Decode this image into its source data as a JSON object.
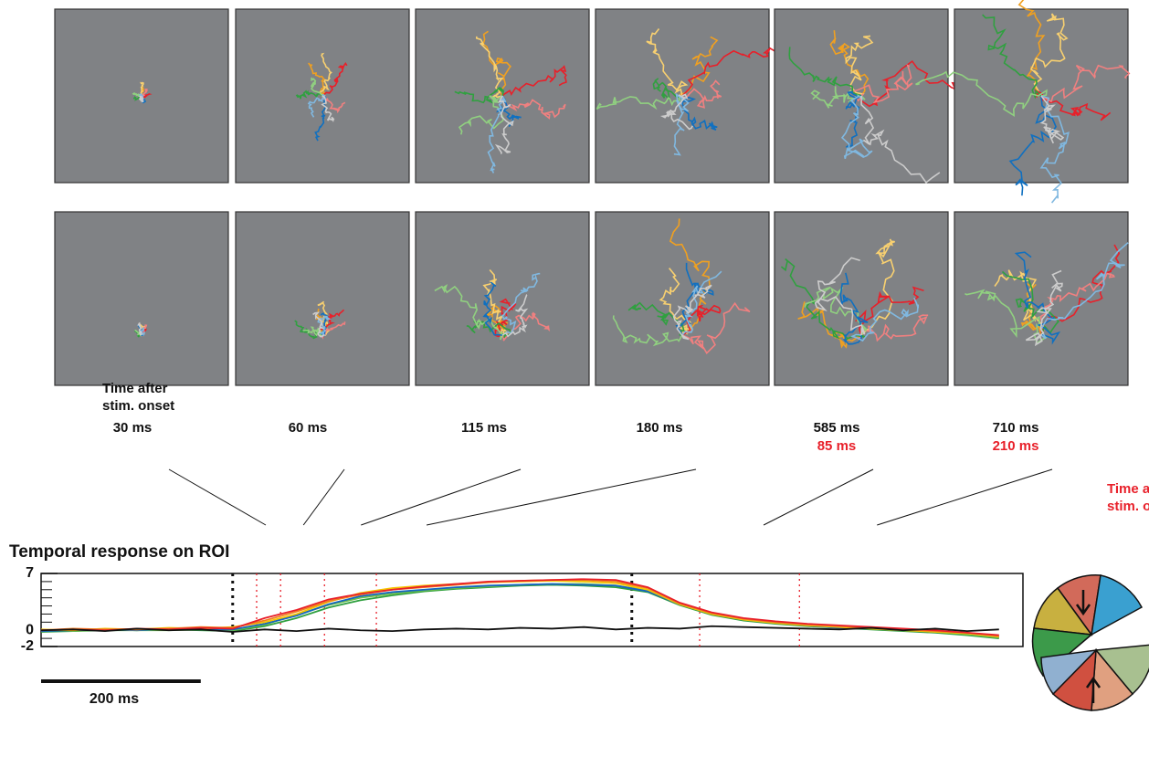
{
  "figure": {
    "onset_caption": [
      "Time after",
      "stim. onset"
    ],
    "offset_caption": [
      "Time after",
      "stim. offset"
    ],
    "times": [
      "30 ms",
      "60 ms",
      "115 ms",
      "180 ms",
      "585 ms",
      "710 ms"
    ],
    "offset_times": [
      "85 ms",
      "210 ms"
    ]
  },
  "chart_data": {
    "type": "line",
    "title": "Temporal response on ROI",
    "x": [
      -240,
      -200,
      -160,
      -120,
      -80,
      -40,
      0,
      40,
      80,
      120,
      160,
      200,
      240,
      280,
      320,
      360,
      400,
      440,
      480,
      520,
      560,
      600,
      640,
      680,
      720,
      760,
      800,
      840,
      880,
      920,
      960
    ],
    "series": [
      {
        "color": "#30a040",
        "values": [
          -0.2,
          -0.1,
          0,
          0,
          0.1,
          0,
          -0.1,
          0.5,
          1.5,
          2.8,
          3.7,
          4.3,
          4.8,
          5.1,
          5.3,
          5.5,
          5.6,
          5.5,
          5.3,
          4.7,
          3.1,
          1.9,
          1.2,
          0.8,
          0.5,
          0.3,
          0.1,
          -0.1,
          -0.3,
          -0.6,
          -1
        ]
      },
      {
        "color": "#6cc04a",
        "values": [
          0,
          -0.1,
          0.1,
          0,
          0,
          0.1,
          0,
          0.7,
          1.9,
          3.1,
          4,
          4.5,
          4.9,
          5.2,
          5.4,
          5.6,
          5.7,
          5.7,
          5.5,
          4.9,
          3.3,
          2,
          1.3,
          0.9,
          0.6,
          0.4,
          0.2,
          0,
          -0.2,
          -0.5,
          -0.9
        ]
      },
      {
        "color": "#1565c0",
        "values": [
          -0.1,
          0,
          0.1,
          0,
          0.2,
          0.1,
          0.1,
          0.8,
          1.8,
          3.2,
          4.2,
          4.7,
          5,
          5.3,
          5.5,
          5.6,
          5.7,
          5.6,
          5.5,
          4.8,
          3.2,
          2,
          1.3,
          0.9,
          0.6,
          0.3,
          0.2,
          0,
          -0.2,
          -0.4,
          -0.8
        ]
      },
      {
        "color": "#f5c400",
        "values": [
          0.1,
          0,
          0.2,
          0.1,
          0.3,
          0.2,
          0.4,
          1,
          2,
          3.5,
          4.6,
          5.2,
          5.5,
          5.7,
          5.9,
          6,
          6.1,
          6,
          5.8,
          5,
          3.2,
          2,
          1.3,
          0.9,
          0.6,
          0.4,
          0.2,
          0,
          -0.2,
          -0.4,
          -0.8
        ]
      },
      {
        "color": "#f08020",
        "values": [
          0,
          0.2,
          0.1,
          0.1,
          0.2,
          0.4,
          0.3,
          1.2,
          2.3,
          3.6,
          4.4,
          5,
          5.3,
          5.6,
          5.9,
          6.1,
          6.2,
          6.2,
          6,
          5.2,
          3.3,
          2.1,
          1.4,
          1,
          0.7,
          0.5,
          0.3,
          0.1,
          -0.1,
          -0.3,
          -0.7
        ]
      },
      {
        "color": "#e8202a",
        "values": [
          0,
          0.1,
          0,
          0.2,
          0.1,
          0.3,
          0.2,
          1.5,
          2.5,
          3.8,
          4.5,
          5,
          5.4,
          5.7,
          6,
          6.1,
          6.2,
          6.3,
          6.2,
          5.3,
          3.4,
          2.2,
          1.5,
          1.1,
          0.8,
          0.6,
          0.4,
          0.2,
          0,
          -0.3,
          -0.6
        ]
      },
      {
        "color": "#111111",
        "values": [
          0,
          0.1,
          -0.1,
          0.2,
          0,
          0.1,
          -0.2,
          0.1,
          -0.1,
          0.2,
          0,
          -0.1,
          0.1,
          0.2,
          0.1,
          0.3,
          0.2,
          0.4,
          0.1,
          0.3,
          0.2,
          0.5,
          0.4,
          0.3,
          0.2,
          0.1,
          0.3,
          0,
          0.2,
          -0.1,
          0.1
        ]
      }
    ],
    "xlim": [
      -240,
      990
    ],
    "ylim": [
      -2,
      7
    ],
    "yticks": [
      -2,
      0,
      7
    ],
    "frame_times": [
      30,
      60,
      115,
      180,
      585,
      710
    ],
    "stim_times": [
      0,
      500
    ],
    "scale_bar": {
      "length": 200,
      "label": "200 ms"
    }
  }
}
